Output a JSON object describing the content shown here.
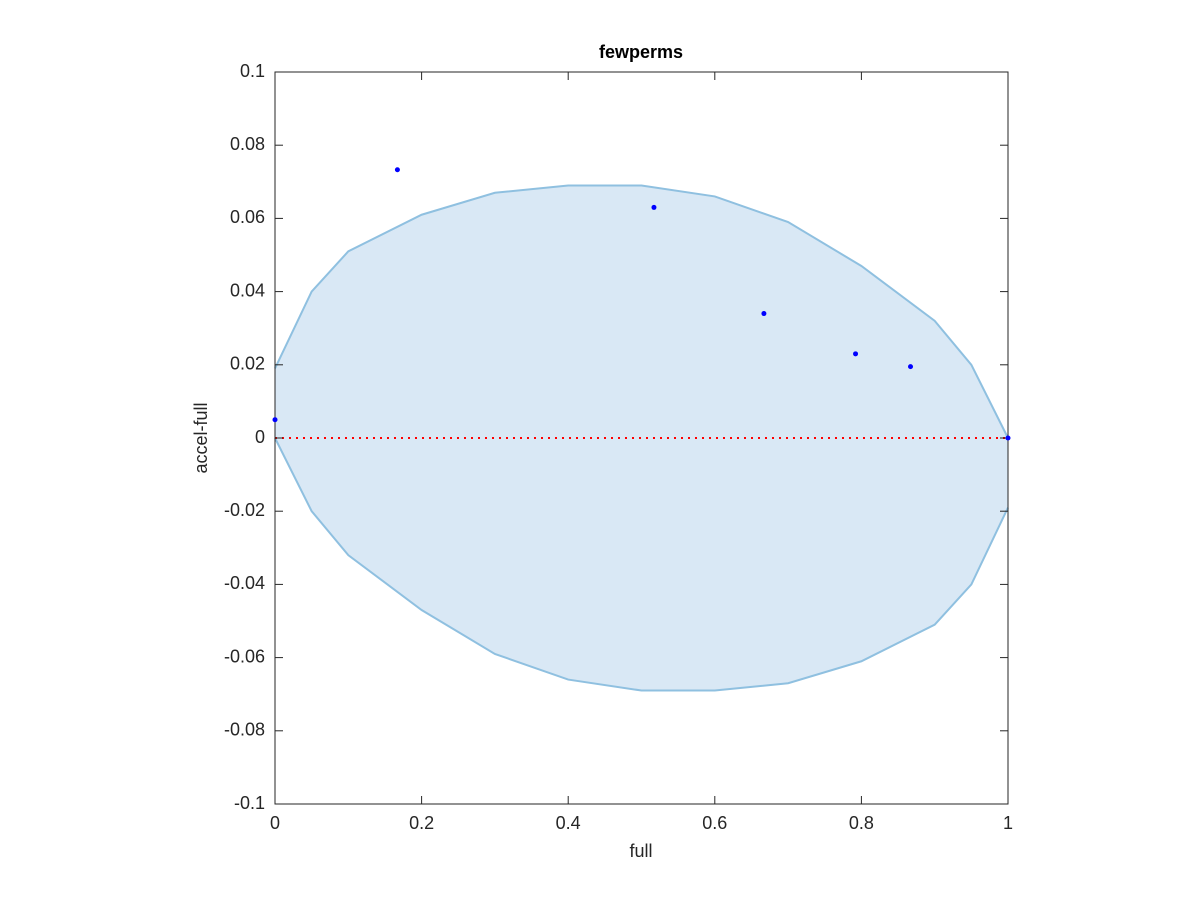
{
  "chart_data": {
    "type": "scatter",
    "title": "fewperms",
    "xlabel": "full",
    "ylabel": "accel-full",
    "x": [
      0,
      0.167,
      0.517,
      0.667,
      0.792,
      0.867,
      1
    ],
    "values": [
      0.005,
      0.0733,
      0.063,
      0.034,
      0.023,
      0.0195,
      0
    ],
    "color": "#0000ff",
    "band": {
      "x": [
        0,
        0.05,
        0.1,
        0.2,
        0.3,
        0.4,
        0.5,
        0.6,
        0.7,
        0.8,
        0.9,
        0.95,
        1
      ],
      "upper": [
        0.019,
        0.04,
        0.051,
        0.061,
        0.067,
        0.069,
        0.069,
        0.066,
        0.059,
        0.047,
        0.032,
        0.02,
        0
      ],
      "lower": [
        0,
        -0.02,
        -0.032,
        -0.047,
        -0.059,
        -0.066,
        -0.069,
        -0.069,
        -0.067,
        -0.061,
        -0.051,
        -0.04,
        -0.019
      ],
      "fill": "#d9e8f5",
      "edge": "#8fc0e0"
    },
    "reference_line": {
      "y": 0,
      "color": "#ff0000"
    },
    "xlim": [
      0,
      1
    ],
    "xticks": [
      0,
      0.2,
      0.4,
      0.6,
      0.8,
      1
    ],
    "ylim": [
      -0.1,
      0.1
    ],
    "yticks": [
      -0.1,
      -0.08,
      -0.06,
      -0.04,
      -0.02,
      0,
      0.02,
      0.04,
      0.06,
      0.08,
      0.1
    ],
    "grid": false
  }
}
